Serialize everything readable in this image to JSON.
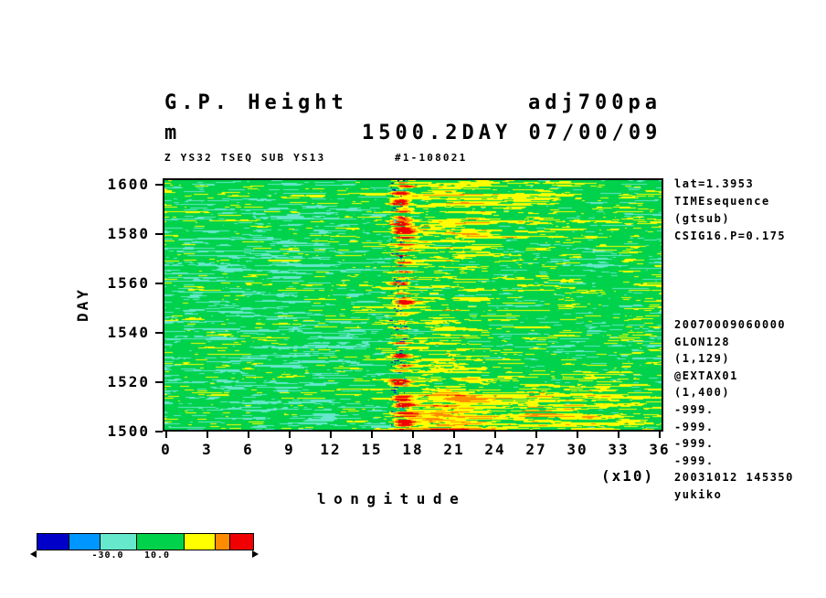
{
  "title": {
    "left": "G.P. Height",
    "right": "adj700pa"
  },
  "subtitle": {
    "left": "m",
    "right": "1500.2DAY 07/00/09"
  },
  "header_small": {
    "left": "Z YS32 TSEQ SUB YS13",
    "right": "#1-108021"
  },
  "y_axis": {
    "label": "DAY",
    "ticks": [
      "1600",
      "1580",
      "1560",
      "1540",
      "1520",
      "1500"
    ]
  },
  "x_axis": {
    "label": "longitude",
    "multiplier": "(x10)",
    "ticks": [
      "0",
      "3",
      "6",
      "9",
      "12",
      "15",
      "18",
      "21",
      "24",
      "27",
      "30",
      "33",
      "36"
    ]
  },
  "right_annotations_top": [
    "lat=1.3953",
    "TIMEsequence",
    "(gtsub)",
    "CSIG16.P=0.175"
  ],
  "right_annotations_bottom": [
    "20070009060000",
    "GLON128",
    "(1,129)",
    "@EXTAX01",
    "(1,400)",
    "-999.",
    "-999.",
    "-999.",
    "-999.",
    "20031012 145350",
    "yukiko"
  ],
  "colorbar": {
    "segments": [
      {
        "color": "#0000c8",
        "width": 34
      },
      {
        "color": "#0096ff",
        "width": 34
      },
      {
        "color": "#66e8cd",
        "width": 40
      },
      {
        "color": "#00d24b",
        "width": 52
      },
      {
        "color": "#ffff00",
        "width": 34
      },
      {
        "color": "#ff8c00",
        "width": 16
      },
      {
        "color": "#f00000",
        "width": 26
      }
    ],
    "tick_labels": [
      {
        "text": "-30.0",
        "x": 118
      },
      {
        "text": "10.0",
        "x": 172
      }
    ]
  },
  "chart_data": {
    "type": "heatmap",
    "title": "G.P. Height adj700pa",
    "subtitle": "1500.2DAY 07/00/09",
    "units": "m",
    "xlabel": "longitude",
    "ylabel": "DAY",
    "x_range": [
      0,
      360
    ],
    "x_tick_values": [
      0,
      30,
      60,
      90,
      120,
      150,
      180,
      210,
      240,
      270,
      300,
      330,
      360
    ],
    "x_tick_note": "tick labels shown divided by 10 with (x10) multiplier",
    "y_range": [
      1500,
      1600
    ],
    "y_tick_values": [
      1600,
      1580,
      1560,
      1540,
      1520,
      1500
    ],
    "grid": false,
    "legend_position": "bottom-left horizontal colorbar",
    "colormap": {
      "levels": [
        -40,
        -30,
        -10,
        10,
        25,
        40
      ],
      "colors": [
        "#0000c8",
        "#0096ff",
        "#66e8cd",
        "#00d24b",
        "#ffff00",
        "#ff8c00",
        "#f00000"
      ],
      "labeled_levels": [
        -30.0,
        10.0
      ]
    },
    "description": "Time-longitude (Hovmoller) section of 700 hPa geopotential height anomaly (m) for days 1500-1600. Field is mostly near zero (green) with cyan/turquoise negative patches concentrated west of longitude 180, a sharp quasi-stationary band of strong positive anomalies (orange/red, >40 m) with occasional adjacent deep-blue flecks near longitude 170-180, diffuse yellow positive anomalies east of 180, strongest around days 1500-1510 and 1590-1600.",
    "field_model": {
      "seed": 7,
      "base": [
        {
          "amp": 13,
          "xfreq": 16,
          "yfreq": 0.5
        },
        {
          "amp": 8,
          "xfreq": 42,
          "yfreq": 1.0
        },
        {
          "amp": 5,
          "xfreq": 95,
          "yfreq": 2.2
        }
      ],
      "row_stripe_amp": 5,
      "features": [
        {
          "kind": "band",
          "cx": 0.478,
          "sx": 0.013,
          "amp": 55
        },
        {
          "kind": "blob",
          "cx": 0.56,
          "sx": 0.07,
          "cy": 0.5,
          "sy": 0.6,
          "amp": 9
        },
        {
          "kind": "blob",
          "cx": 0.63,
          "sx": 0.1,
          "cy": 0.1,
          "sy": 0.13,
          "amp": 15
        },
        {
          "kind": "blob",
          "cx": 0.78,
          "sx": 0.18,
          "cy": 0.95,
          "sy": 0.1,
          "amp": 20
        },
        {
          "kind": "blob",
          "cx": 0.55,
          "sx": 0.05,
          "cy": 0.97,
          "sy": 0.07,
          "amp": 22
        },
        {
          "kind": "cool",
          "cx": 0.22,
          "sx": 0.22,
          "amp": -7
        },
        {
          "kind": "flecks",
          "cx": 0.47,
          "sx": 0.02,
          "amp": -55,
          "thresh": 0.62
        }
      ]
    }
  }
}
